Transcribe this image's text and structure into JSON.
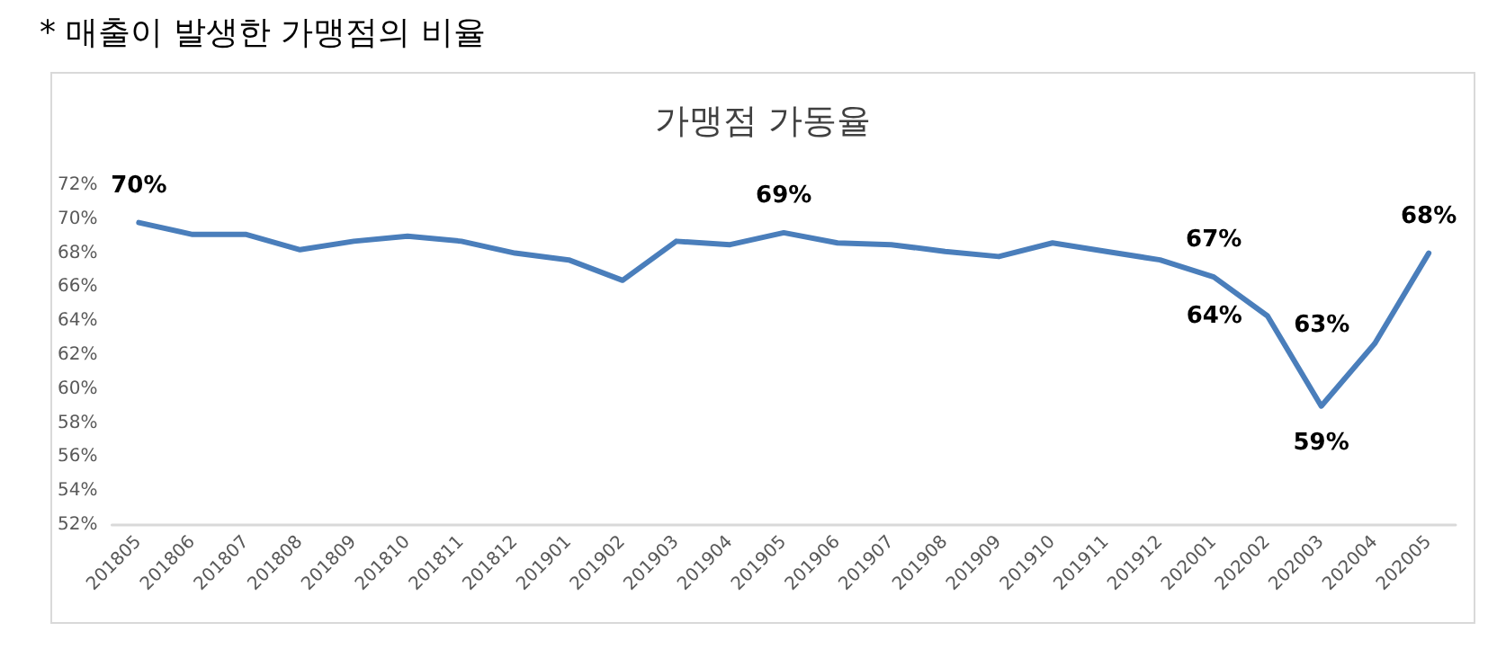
{
  "chart_data": {
    "type": "line",
    "title": "가맹점 가동율",
    "annotations": [
      "* 매출이 발생한 가맹점의 비율"
    ],
    "categories": [
      "201805",
      "201806",
      "201807",
      "201808",
      "201809",
      "201810",
      "201811",
      "201812",
      "201901",
      "201902",
      "201903",
      "201904",
      "201905",
      "201906",
      "201907",
      "201908",
      "201909",
      "201910",
      "201911",
      "201912",
      "202001",
      "202002",
      "202003",
      "202004",
      "202005"
    ],
    "series": [
      {
        "color": "#4a7ebb",
        "values": [
          69.8,
          69.1,
          69.1,
          68.2,
          68.7,
          69.0,
          68.7,
          68.0,
          67.6,
          66.4,
          68.7,
          68.5,
          69.2,
          68.6,
          68.5,
          68.1,
          67.8,
          68.6,
          68.1,
          67.6,
          66.6,
          64.3,
          59.0,
          62.7,
          68.0
        ],
        "value_labels": [
          "70%",
          null,
          null,
          null,
          null,
          null,
          null,
          null,
          null,
          null,
          null,
          null,
          "69%",
          null,
          null,
          null,
          null,
          null,
          null,
          null,
          "67%",
          "64%",
          "59%",
          "63%",
          "68%"
        ]
      }
    ],
    "ylim": [
      52,
      72
    ],
    "yticks": [
      {
        "value": 52,
        "label": "52%"
      },
      {
        "value": 54,
        "label": "54%"
      },
      {
        "value": 56,
        "label": "56%"
      },
      {
        "value": 58,
        "label": "58%"
      },
      {
        "value": 60,
        "label": "60%"
      },
      {
        "value": 62,
        "label": "62%"
      },
      {
        "value": 64,
        "label": "64%"
      },
      {
        "value": 66,
        "label": "66%"
      },
      {
        "value": 68,
        "label": "68%"
      },
      {
        "value": 70,
        "label": "70%"
      },
      {
        "value": 72,
        "label": "72%"
      }
    ],
    "grid": false,
    "marker": "none",
    "line_style": "solid"
  }
}
